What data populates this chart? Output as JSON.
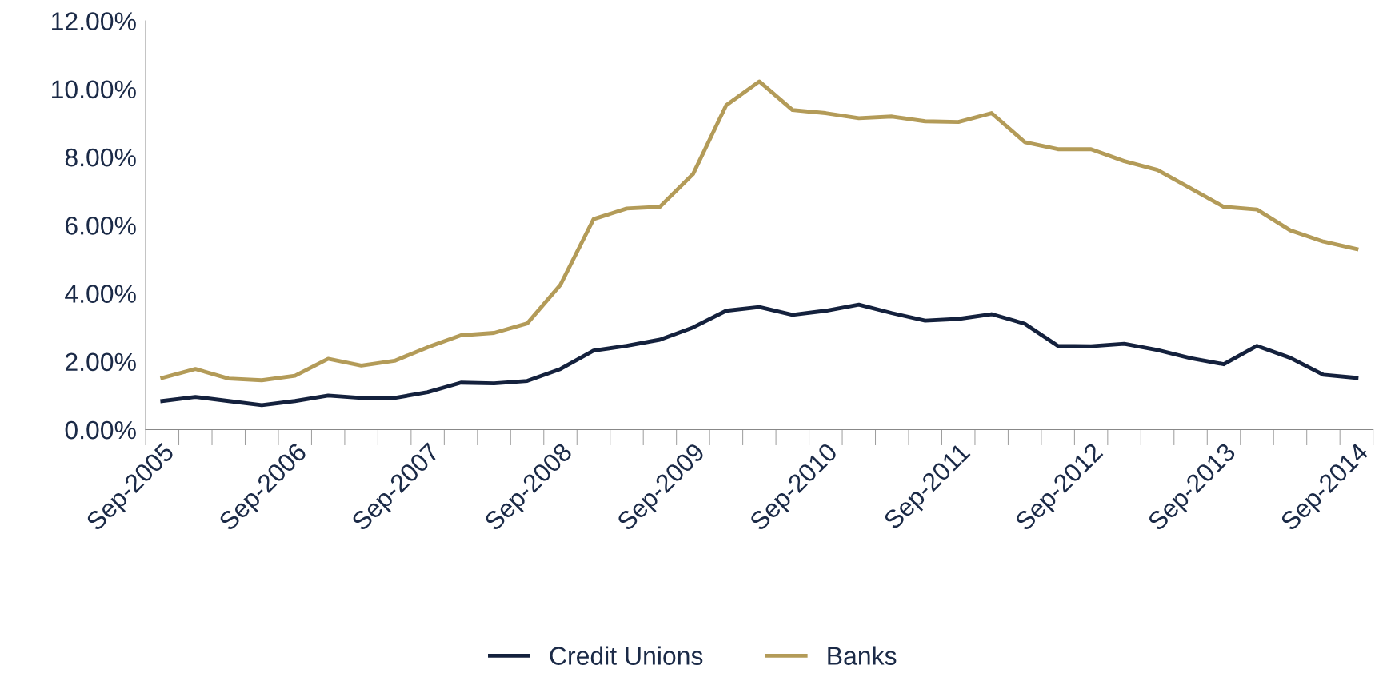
{
  "chart_data": {
    "type": "line",
    "categories": [
      "Sep-2005",
      null,
      null,
      null,
      "Sep-2006",
      null,
      null,
      null,
      "Sep-2007",
      null,
      null,
      null,
      "Sep-2008",
      null,
      null,
      null,
      "Sep-2009",
      null,
      null,
      null,
      "Sep-2010",
      null,
      null,
      null,
      "Sep-2011",
      null,
      null,
      null,
      "Sep-2012",
      null,
      null,
      null,
      "Sep-2013",
      null,
      null,
      null,
      "Sep-2014"
    ],
    "series": [
      {
        "name": "Credit Unions",
        "color": "#14213d",
        "values": [
          0.84,
          0.96,
          0.84,
          0.72,
          0.84,
          1.0,
          0.93,
          0.93,
          1.1,
          1.38,
          1.36,
          1.43,
          1.78,
          2.32,
          2.46,
          2.64,
          3.0,
          3.49,
          3.6,
          3.37,
          3.49,
          3.67,
          3.42,
          3.2,
          3.25,
          3.39,
          3.11,
          2.46,
          2.45,
          2.52,
          2.34,
          2.1,
          1.92,
          2.46,
          2.11,
          1.61,
          1.52
        ]
      },
      {
        "name": "Banks",
        "color": "#b39b58",
        "values": [
          1.52,
          1.78,
          1.5,
          1.45,
          1.58,
          2.08,
          1.88,
          2.02,
          2.42,
          2.77,
          2.84,
          3.12,
          4.25,
          6.18,
          6.49,
          6.54,
          7.5,
          9.52,
          10.22,
          9.38,
          9.29,
          9.14,
          9.19,
          9.05,
          9.03,
          9.29,
          8.44,
          8.23,
          8.23,
          7.88,
          7.62,
          7.08,
          6.54,
          6.46,
          5.85,
          5.52,
          5.3
        ]
      }
    ],
    "ylim": [
      0,
      12
    ],
    "yticks": [
      {
        "value": 0,
        "label": "0.00%"
      },
      {
        "value": 2,
        "label": "2.00%"
      },
      {
        "value": 4,
        "label": "4.00%"
      },
      {
        "value": 6,
        "label": "6.00%"
      },
      {
        "value": 8,
        "label": "8.00%"
      },
      {
        "value": 10,
        "label": "10.00%"
      },
      {
        "value": 12,
        "label": "12.00%"
      }
    ],
    "grid": false,
    "legend": "bottom",
    "marker": "none",
    "line_style": "solid"
  }
}
